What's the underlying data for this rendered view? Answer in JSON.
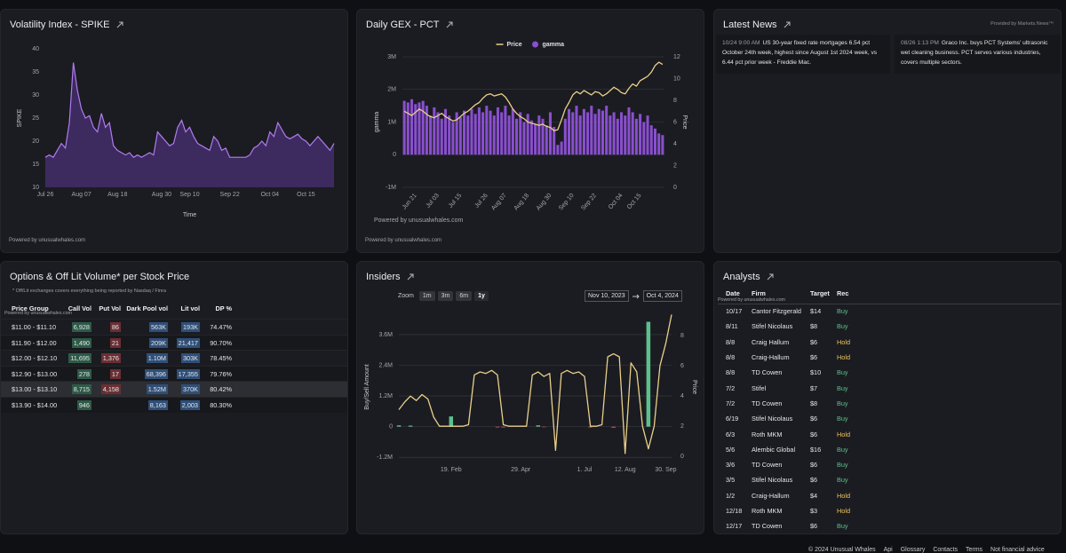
{
  "chart_data": [
    {
      "type": "area",
      "title": "Volatility Index - SPIKE",
      "ylabel": "SPIKE",
      "xlabel": "Time",
      "footer": "Powered by unusualwhales.com",
      "color": "#b07cf0",
      "fill": "#4a2f74",
      "categories": [
        "Jul 26",
        null,
        null,
        null,
        null,
        null,
        null,
        null,
        null,
        "Aug 07",
        null,
        null,
        null,
        null,
        null,
        null,
        null,
        null,
        "Aug 18",
        null,
        null,
        null,
        null,
        null,
        null,
        null,
        null,
        null,
        null,
        "Aug 30",
        null,
        null,
        null,
        null,
        null,
        null,
        "Sep 10",
        null,
        null,
        null,
        null,
        null,
        null,
        null,
        null,
        null,
        "Sep 22",
        null,
        null,
        null,
        null,
        null,
        null,
        null,
        null,
        null,
        "Oct 04",
        null,
        null,
        null,
        null,
        null,
        null,
        null,
        null,
        "Oct 15",
        null,
        null,
        null,
        null,
        null,
        null,
        null
      ],
      "values": [
        16.5,
        17,
        16.5,
        18,
        19.5,
        18.5,
        24,
        37,
        31,
        27,
        25,
        25.5,
        23,
        22,
        26,
        23,
        24,
        19,
        18,
        17.5,
        17,
        17.5,
        16.5,
        17,
        16.5,
        17,
        17.5,
        17,
        22,
        21,
        20,
        19,
        19.5,
        23,
        24.5,
        22,
        23,
        21,
        19.5,
        19,
        18.5,
        18,
        21,
        20,
        18,
        18.5,
        16.5,
        16.5,
        16.5,
        16.5,
        16.5,
        17,
        18.5,
        19,
        20,
        19,
        22,
        21,
        24,
        22.5,
        21,
        20.5,
        21,
        21.5,
        20.5,
        20,
        19,
        20,
        21,
        20,
        19,
        18,
        19.5
      ],
      "ylim": [
        10,
        40
      ],
      "yticks": [
        10,
        15,
        20,
        25,
        30,
        35,
        40
      ],
      "grid": false
    },
    {
      "type": "combo",
      "title": "Daily GEX - PCT",
      "ylabel": "gamma",
      "y2label": "Price",
      "watermark": "Powered by unusualwhales.com",
      "footer": "Powered by unusualwhales.com",
      "legend": "top",
      "grid": true,
      "categories": [
        null,
        null,
        null,
        "Jun 21",
        null,
        null,
        null,
        null,
        null,
        "Jul 03",
        null,
        null,
        null,
        null,
        null,
        "Jul 15",
        null,
        null,
        null,
        null,
        null,
        null,
        "Jul 26",
        null,
        null,
        null,
        null,
        "Aug 07",
        null,
        null,
        null,
        null,
        null,
        "Aug 18",
        null,
        null,
        null,
        null,
        null,
        "Aug 30",
        null,
        null,
        null,
        null,
        null,
        "Sep 10",
        null,
        null,
        null,
        null,
        null,
        "Sep 22",
        null,
        null,
        null,
        null,
        null,
        null,
        "Oct 04",
        null,
        null,
        null,
        null,
        "Oct 15",
        null,
        null,
        null,
        null,
        null,
        null
      ],
      "series": [
        {
          "name": "Price",
          "kind": "line",
          "axis": "y2",
          "color": "#e8cf8a",
          "values": [
            7.0,
            6.8,
            6.6,
            6.9,
            7.2,
            7.0,
            6.7,
            6.5,
            6.4,
            6.6,
            6.8,
            6.5,
            6.3,
            6.1,
            6.2,
            6.5,
            6.8,
            7.0,
            7.3,
            7.6,
            7.8,
            8.2,
            8.5,
            8.6,
            8.4,
            8.5,
            8.6,
            8.3,
            7.8,
            7.2,
            6.8,
            6.5,
            6.3,
            6.0,
            5.9,
            5.8,
            5.7,
            5.8,
            5.6,
            5.5,
            5.2,
            5.3,
            6.2,
            7.2,
            7.8,
            8.5,
            8.8,
            8.6,
            8.9,
            8.7,
            8.5,
            8.8,
            8.7,
            8.4,
            8.6,
            8.9,
            9.2,
            9.0,
            8.7,
            8.6,
            9.1,
            9.5,
            9.3,
            9.8,
            10.0,
            10.2,
            10.6,
            11.2,
            11.5,
            11.3
          ]
        },
        {
          "name": "gamma",
          "kind": "bar",
          "color": "#8a4fd0",
          "values": [
            1650000,
            1600000,
            1700000,
            1550000,
            1600000,
            1650000,
            1500000,
            1200000,
            1450000,
            1300000,
            1100000,
            1400000,
            1200000,
            1000000,
            1300000,
            1150000,
            1350000,
            1200000,
            1400000,
            1250000,
            1450000,
            1300000,
            1500000,
            1350000,
            1200000,
            1450000,
            1300000,
            1500000,
            1200000,
            1400000,
            1100000,
            1300000,
            1000000,
            1250000,
            1050000,
            950000,
            1200000,
            1100000,
            900000,
            1300000,
            850000,
            300000,
            400000,
            1100000,
            1400000,
            1300000,
            1500000,
            1200000,
            1400000,
            1300000,
            1500000,
            1250000,
            1400000,
            1350000,
            1500000,
            1200000,
            1300000,
            1100000,
            1300000,
            1200000,
            1450000,
            1300000,
            1100000,
            1250000,
            1000000,
            1200000,
            900000,
            800000,
            650000,
            600000
          ]
        }
      ],
      "ylim": [
        -1000000,
        3000000
      ],
      "yticks": [
        {
          "value": -1000000,
          "label": "-1M"
        },
        0,
        {
          "value": 1000000,
          "label": "1M"
        },
        {
          "value": 2000000,
          "label": "2M"
        },
        {
          "value": 3000000,
          "label": "3M"
        }
      ],
      "y2lim": [
        0,
        12
      ],
      "y2ticks": [
        0,
        2,
        4,
        6,
        8,
        10,
        12
      ]
    },
    {
      "type": "combo",
      "title": "Insiders",
      "ylabel": "Buy/Sell Amount",
      "y2label": "Price",
      "grid": true,
      "zoom_label": "Zoom",
      "zoom_buttons": [
        "1m",
        "3m",
        "6m",
        "1y"
      ],
      "range_start": "Nov 10, 2023",
      "range_end": "Oct 4, 2024",
      "categories": [
        null,
        null,
        null,
        null,
        null,
        null,
        null,
        null,
        null,
        "19. Feb",
        null,
        null,
        null,
        null,
        null,
        null,
        null,
        null,
        null,
        null,
        null,
        "29. Apr",
        null,
        null,
        null,
        null,
        null,
        null,
        null,
        null,
        null,
        null,
        "1. Jul",
        null,
        null,
        null,
        null,
        null,
        null,
        "12. Aug",
        null,
        null,
        null,
        null,
        null,
        null,
        "30. Sep",
        null
      ],
      "series": [
        {
          "kind": "bar",
          "pos_color": "#5cc08d",
          "neg_color": "#d9534f",
          "values": [
            50000,
            0,
            40000,
            0,
            0,
            0,
            0,
            0,
            0,
            400000,
            0,
            0,
            0,
            0,
            0,
            0,
            0,
            -30000,
            -30000,
            0,
            0,
            0,
            0,
            0,
            50000,
            -20000,
            0,
            0,
            0,
            0,
            0,
            0,
            0,
            -30000,
            0,
            0,
            0,
            -40000,
            0,
            0,
            0,
            0,
            0,
            4100000,
            0,
            0,
            0,
            0
          ]
        },
        {
          "kind": "line",
          "axis": "y2",
          "color": "#e8cf8a",
          "values": [
            3.1,
            3.6,
            4.0,
            3.7,
            4.1,
            3.8,
            2.6,
            2.0,
            2.0,
            2.0,
            2.0,
            2.0,
            2.1,
            5.4,
            5.6,
            5.5,
            5.7,
            5.4,
            2.1,
            2.0,
            2.0,
            2.0,
            2.0,
            5.4,
            5.6,
            5.3,
            5.5,
            0.4,
            5.5,
            5.7,
            5.5,
            5.6,
            5.3,
            2.0,
            2.0,
            2.1,
            6.6,
            6.8,
            6.6,
            0.2,
            6.2,
            5.6,
            2.0,
            0.5,
            2.0,
            6.0,
            7.5,
            9.4
          ]
        }
      ],
      "ylim": [
        -1400000,
        4500000
      ],
      "yticks": [
        {
          "value": -1200000,
          "label": "-1.2M"
        },
        0,
        {
          "value": 1200000,
          "label": "1.2M"
        },
        {
          "value": 2400000,
          "label": "2.4M"
        },
        {
          "value": 3600000,
          "label": "3.6M"
        }
      ],
      "y2lim": [
        -0.4,
        9.6
      ],
      "y2ticks": [
        0,
        2,
        4,
        6,
        8
      ]
    }
  ],
  "news": {
    "title": "Latest News",
    "provider": "Provided by Markets.News™",
    "items": [
      {
        "time": "10/24 9:00 AM",
        "text": "US 30-year fixed rate mortgages 6.54 pct October 24th week, highest since August 1st 2024 week, vs 6.44 pct prior week - Freddie Mac."
      },
      {
        "time": "08/26 1:13 PM",
        "text": "Graco Inc. buys PCT Systems' ultrasonic wet cleaning business. PCT serves various industries, covers multiple sectors."
      }
    ]
  },
  "options": {
    "title": "Options & Off Lit Volume* per Stock Price",
    "note": "* Off/Lit exchanges covers everything being reported by Nasdaq / Finra",
    "powered": "Powered by unusualwhales.com",
    "columns": [
      "Price Group",
      "Call Vol",
      "Put Vol",
      "Dark Pool vol",
      "Lit vol",
      "DP %"
    ],
    "rows": [
      [
        "$11.00 - $11.10",
        "6,928",
        "86",
        "563K",
        "193K",
        "74.47%"
      ],
      [
        "$11.90 - $12.00",
        "1,490",
        "21",
        "209K",
        "21,417",
        "90.70%"
      ],
      [
        "$12.00 - $12.10",
        "11,695",
        "1,376",
        "1.10M",
        "303K",
        "78.45%"
      ],
      [
        "$12.90 - $13.00",
        "278",
        "17",
        "68,396",
        "17,355",
        "79.76%"
      ],
      [
        "$13.00 - $13.10",
        "8,715",
        "4,158",
        "1.52M",
        "370K",
        "80.42%"
      ],
      [
        "$13.90 - $14.00",
        "946",
        null,
        "8,163",
        "2,003",
        "80.30%"
      ]
    ],
    "selected_row": 4
  },
  "analysts": {
    "title": "Analysts",
    "powered": "Powered by unusualwhales.com",
    "columns": [
      "Date",
      "Firm",
      "Target",
      "Rec"
    ],
    "rec_colors": {
      "Buy": "#5cc08d",
      "Hold": "#f0c35a"
    },
    "rows": [
      [
        "10/17",
        "Cantor Fitzgerald",
        "$14",
        "Buy"
      ],
      [
        "8/11",
        "Stifel Nicolaus",
        "$8",
        "Buy"
      ],
      [
        "8/8",
        "Craig Hallum",
        "$6",
        "Hold"
      ],
      [
        "8/8",
        "Craig-Hallum",
        "$6",
        "Hold"
      ],
      [
        "8/8",
        "TD Cowen",
        "$10",
        "Buy"
      ],
      [
        "7/2",
        "Stifel",
        "$7",
        "Buy"
      ],
      [
        "7/2",
        "TD Cowen",
        "$8",
        "Buy"
      ],
      [
        "6/19",
        "Stifel Nicolaus",
        "$6",
        "Buy"
      ],
      [
        "6/3",
        "Roth MKM",
        "$6",
        "Hold"
      ],
      [
        "5/6",
        "Alembic Global",
        "$16",
        "Buy"
      ],
      [
        "3/6",
        "TD Cowen",
        "$6",
        "Buy"
      ],
      [
        "3/5",
        "Stifel Nicolaus",
        "$6",
        "Buy"
      ],
      [
        "1/2",
        "Craig-Hallum",
        "$4",
        "Hold"
      ],
      [
        "12/18",
        "Roth MKM",
        "$3",
        "Hold"
      ],
      [
        "12/17",
        "TD Cowen",
        "$6",
        "Buy"
      ]
    ]
  },
  "footer": {
    "copyright": "© 2024 Unusual Whales",
    "links": [
      "Api",
      "Glossary",
      "Contacts",
      "Terms",
      "Not financial advice"
    ]
  }
}
